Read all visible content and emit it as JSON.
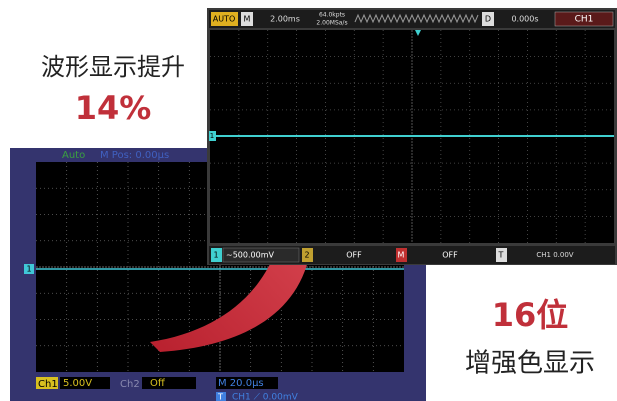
{
  "headline": {
    "title": "波形显示提升",
    "value": "14%"
  },
  "badge": {
    "title": "16位",
    "subtitle": "增强色显示"
  },
  "old_screen": {
    "mode": "Auto",
    "position": "M Pos: 0.00µs",
    "marker": "1",
    "ch1": "Ch1",
    "ch1_scale": "5.00V",
    "ch2": "Ch2",
    "ch2_state": "Off",
    "timebase": "M 20.0µs",
    "trigger": "T",
    "trigger_info": "CH1 ⟋ 0.00mV"
  },
  "new_screen": {
    "mode": "AUTO",
    "m": "M",
    "timebase": "2.00ms",
    "depth": "64.0kpts",
    "rate": "2.00MSa/s",
    "d": "D",
    "delay": "0.000s",
    "channel": "CH1",
    "marker": "1",
    "ch1": "1",
    "ch1_scale": "~500.00mV",
    "ch2": "2",
    "ch2_state": "OFF",
    "math": "M",
    "math_state": "OFF",
    "trigger": "T",
    "trigger_info": "CH1 0.00V"
  }
}
